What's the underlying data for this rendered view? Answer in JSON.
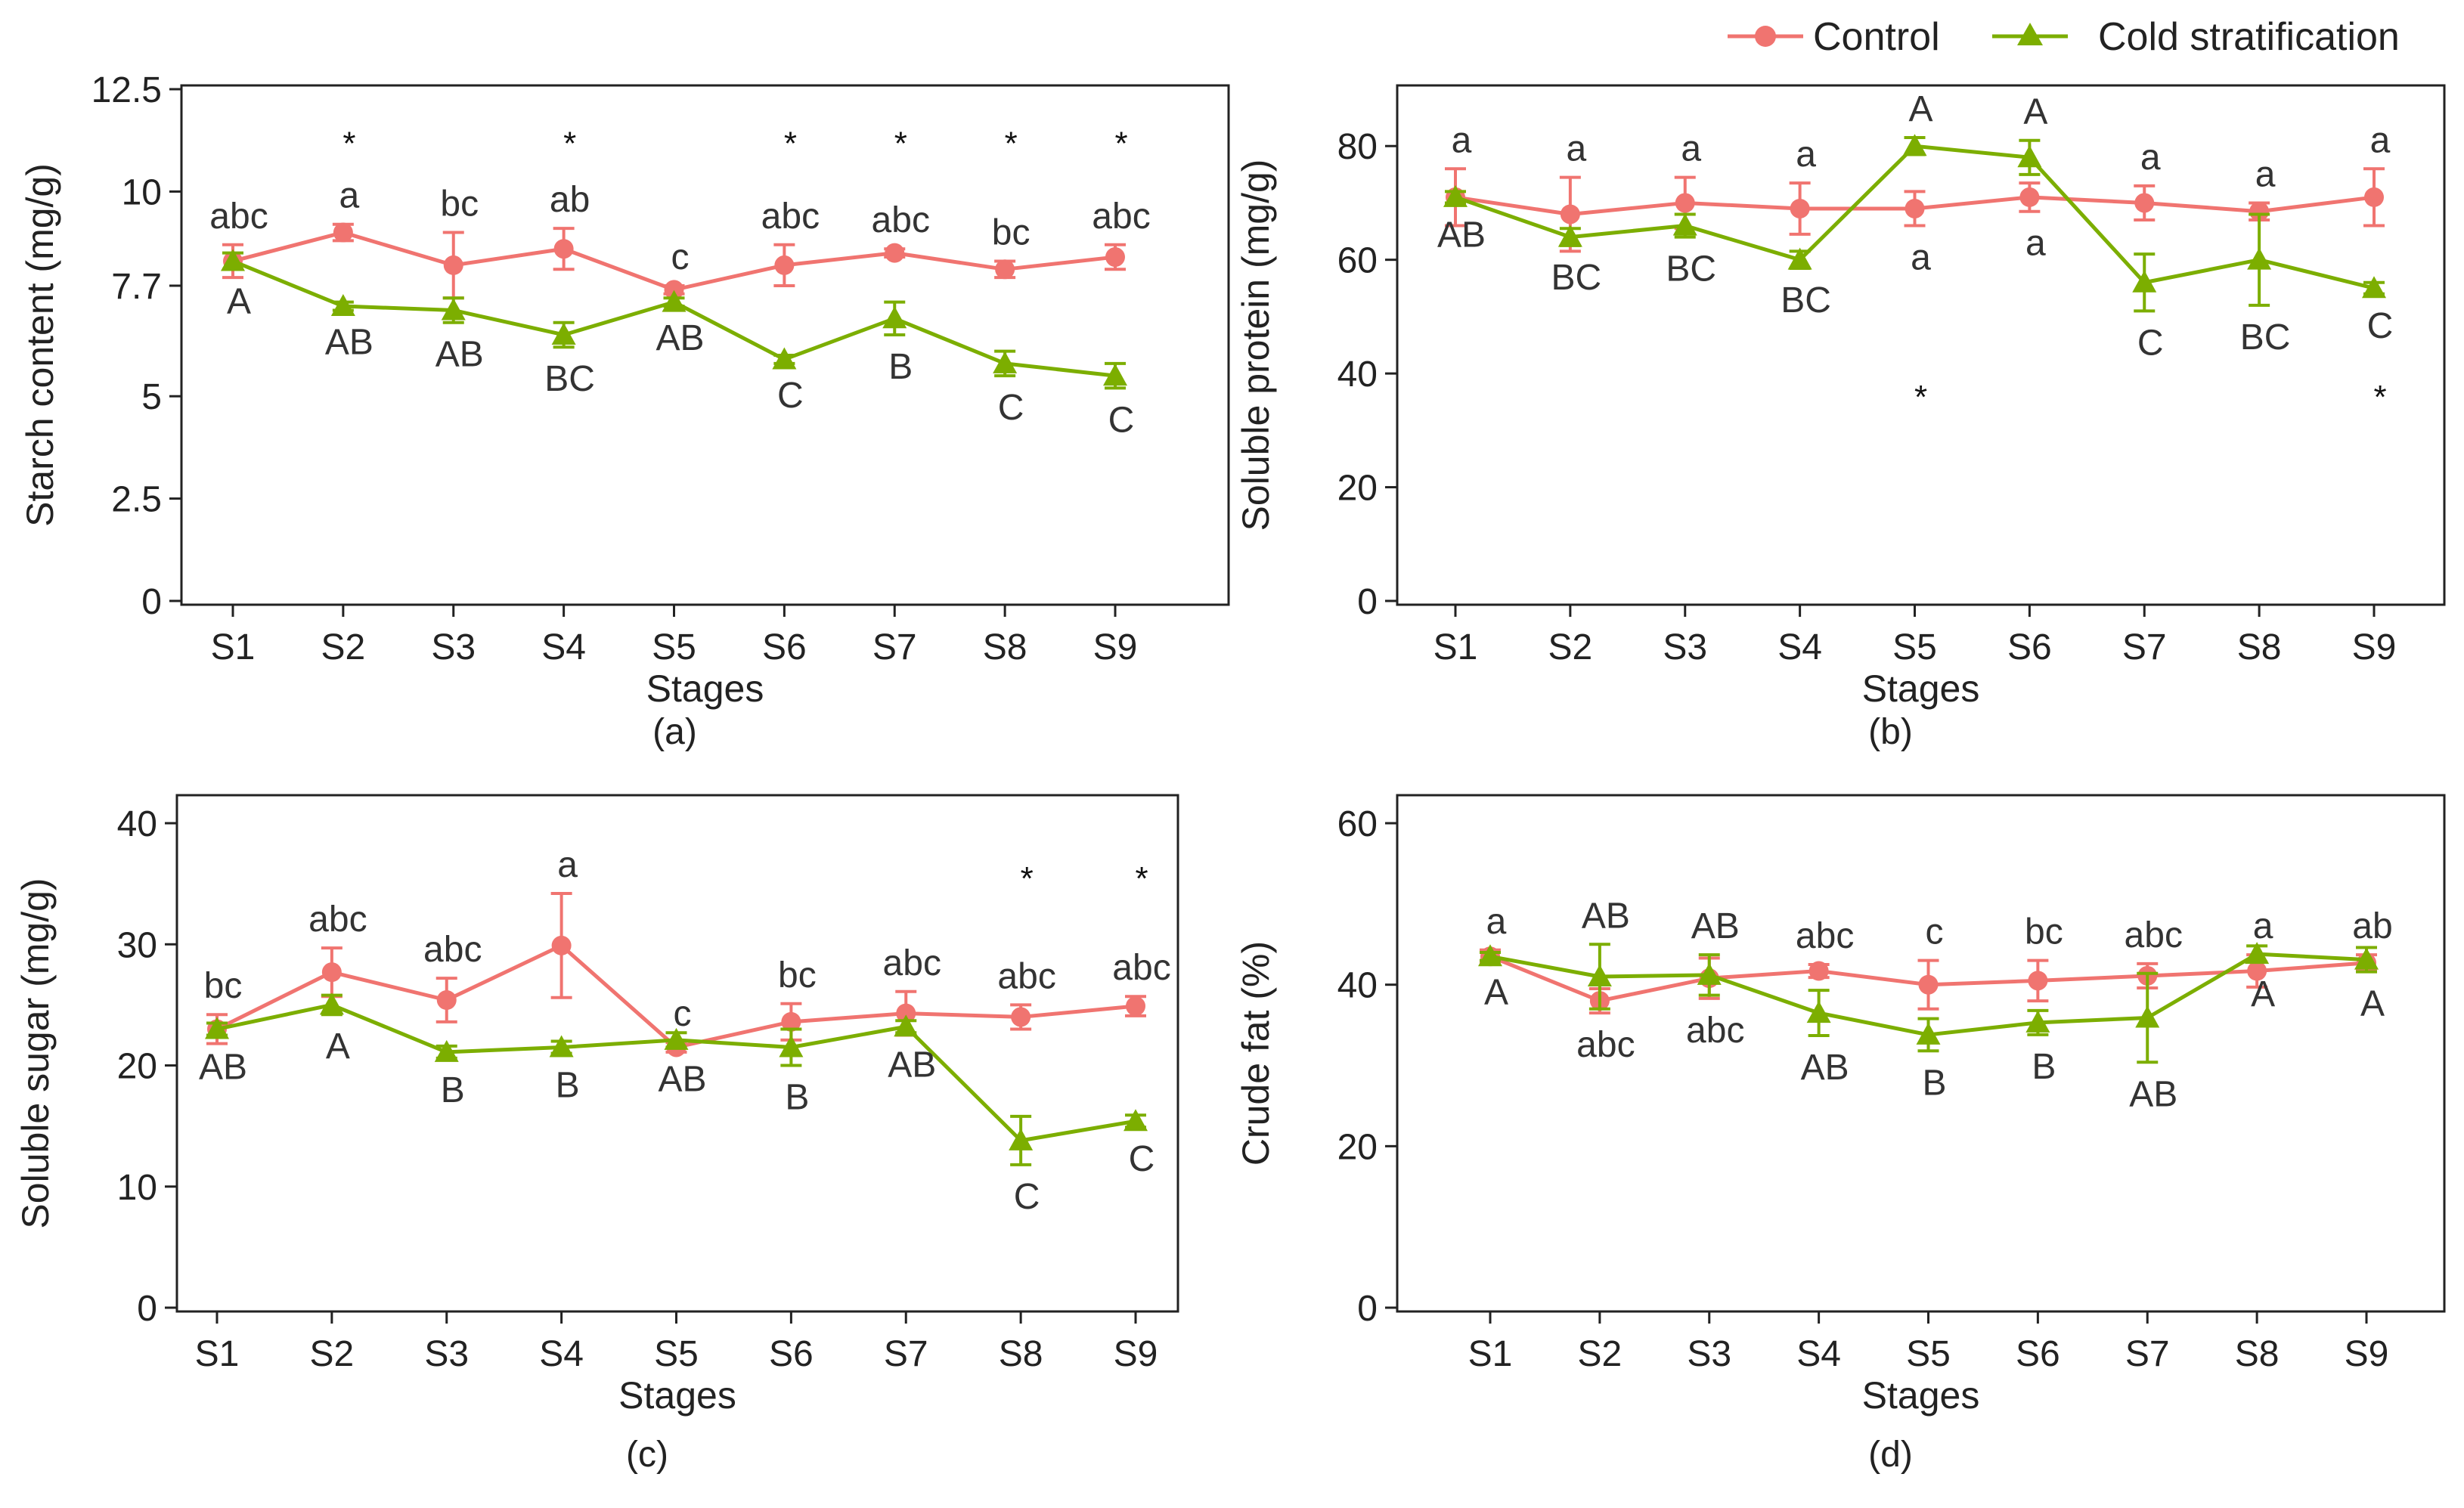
{
  "legend": {
    "control_label": "Control",
    "cold_label": "Cold stratification"
  },
  "colors": {
    "control": "#F07470",
    "cold": "#7CAE00",
    "axis": "#222222"
  },
  "chart_data": [
    {
      "id": "a",
      "type": "line",
      "panel_label": "(a)",
      "xlabel": "Stages",
      "ylabel": "Starch content (mg/g)",
      "ylim": [
        0,
        12.5
      ],
      "yticks": [
        0,
        2.5,
        5,
        7.7,
        10,
        12.5
      ],
      "ytick_labels": [
        "0",
        "2.5",
        "5",
        "7.7",
        "10",
        "12.5"
      ],
      "categories": [
        "S1",
        "S2",
        "S3",
        "S4",
        "S5",
        "S6",
        "S7",
        "S8",
        "S9"
      ],
      "stars": [
        "",
        "*",
        "",
        "*",
        "",
        "*",
        "*",
        "*",
        "*"
      ],
      "star_y": 11.2,
      "series": [
        {
          "name": "Control",
          "values": [
            8.3,
            9.0,
            8.2,
            8.6,
            7.6,
            8.2,
            8.5,
            8.1,
            8.4
          ],
          "errors": [
            0.4,
            0.2,
            0.8,
            0.5,
            0.1,
            0.5,
            0.1,
            0.2,
            0.3
          ],
          "letters": [
            "abc",
            "a",
            "bc",
            "ab",
            "c",
            "abc",
            "abc",
            "bc",
            "abc"
          ],
          "letter_pos": [
            "above",
            "above",
            "above",
            "above",
            "above",
            "above",
            "above",
            "above",
            "above"
          ]
        },
        {
          "name": "Cold stratification",
          "values": [
            8.3,
            7.2,
            7.1,
            6.5,
            7.3,
            5.9,
            6.9,
            5.8,
            5.5
          ],
          "errors": [
            0.2,
            0.1,
            0.3,
            0.3,
            0.1,
            0.1,
            0.4,
            0.3,
            0.3
          ],
          "letters": [
            "A",
            "AB",
            "AB",
            "BC",
            "AB",
            "C",
            "B",
            "C",
            "C"
          ],
          "letter_pos": [
            "below",
            "below",
            "below",
            "below",
            "below",
            "below",
            "below",
            "below",
            "below"
          ]
        }
      ]
    },
    {
      "id": "b",
      "type": "line",
      "panel_label": "(b)",
      "xlabel": "Stages",
      "ylabel": "Soluble protein (mg/g)",
      "ylim": [
        0,
        90
      ],
      "yticks": [
        0,
        20,
        40,
        60,
        80
      ],
      "ytick_labels": [
        "0",
        "20",
        "40",
        "60",
        "80"
      ],
      "categories": [
        "S1",
        "S2",
        "S3",
        "S4",
        "S5",
        "S6",
        "S7",
        "S8",
        "S9"
      ],
      "stars": [
        "",
        "",
        "",
        "",
        "*",
        "",
        "",
        "",
        "*"
      ],
      "star_y": 36,
      "series": [
        {
          "name": "Control",
          "values": [
            71,
            68,
            70,
            69,
            69,
            71,
            70,
            68.5,
            71
          ],
          "errors": [
            5,
            6.5,
            4.5,
            4.5,
            3,
            2.5,
            3,
            1.5,
            5
          ],
          "letters": [
            "a",
            "a",
            "a",
            "a",
            "a",
            "a",
            "a",
            "a",
            "a"
          ],
          "letter_pos": [
            "above",
            "above",
            "above",
            "above",
            "below",
            "below",
            "above",
            "above",
            "above"
          ]
        },
        {
          "name": "Cold stratification",
          "values": [
            71,
            64,
            66,
            60,
            80,
            78,
            56,
            60,
            55
          ],
          "errors": [
            1,
            1.5,
            2,
            1.5,
            1.5,
            3,
            5,
            8,
            1
          ],
          "letters": [
            "AB",
            "BC",
            "BC",
            "BC",
            "A",
            "A",
            "C",
            "BC",
            "C"
          ],
          "letter_pos": [
            "below",
            "below",
            "below",
            "below",
            "above",
            "above",
            "below",
            "below",
            "below"
          ]
        }
      ]
    },
    {
      "id": "c",
      "type": "line",
      "panel_label": "(c)",
      "xlabel": "Stages",
      "ylabel": "Soluble sugar (mg/g)",
      "ylim": [
        0,
        42
      ],
      "yticks": [
        0,
        10,
        20,
        30,
        40
      ],
      "ytick_labels": [
        "0",
        "10",
        "20",
        "30",
        "40"
      ],
      "categories": [
        "S1",
        "S2",
        "S3",
        "S4",
        "S5",
        "S6",
        "S7",
        "S8",
        "S9"
      ],
      "stars": [
        "",
        "",
        "",
        "",
        "",
        "",
        "",
        "*",
        "*"
      ],
      "star_y": 35.5,
      "series": [
        {
          "name": "Control",
          "values": [
            23.0,
            27.7,
            25.4,
            29.9,
            21.5,
            23.6,
            24.3,
            24.0,
            24.9
          ],
          "errors": [
            1.2,
            2.0,
            1.8,
            4.3,
            0.4,
            1.5,
            1.8,
            1.0,
            0.8
          ],
          "letters": [
            "bc",
            "abc",
            "abc",
            "a",
            "c",
            "bc",
            "abc",
            "abc",
            "abc"
          ],
          "letter_pos": [
            "above",
            "above",
            "above",
            "above",
            "above",
            "above",
            "above",
            "above",
            "above"
          ]
        },
        {
          "name": "Cold stratification",
          "values": [
            23.0,
            25.0,
            21.1,
            21.5,
            22.1,
            21.5,
            23.2,
            13.8,
            15.4
          ],
          "errors": [
            0.5,
            0.8,
            0.5,
            0.5,
            0.6,
            1.5,
            0.5,
            2.0,
            0.5
          ],
          "letters": [
            "AB",
            "A",
            "B",
            "B",
            "AB",
            "B",
            "AB",
            "C",
            "C"
          ],
          "letter_pos": [
            "below",
            "below",
            "below",
            "below",
            "below",
            "below",
            "below",
            "below",
            "below"
          ]
        }
      ]
    },
    {
      "id": "d",
      "type": "line",
      "panel_label": "(d)",
      "xlabel": "Stages",
      "ylabel": "Crude fat (%)",
      "ylim": [
        0,
        63
      ],
      "yticks": [
        0,
        20,
        40,
        60
      ],
      "ytick_labels": [
        "0",
        "20",
        "40",
        "60"
      ],
      "categories": [
        "S1",
        "S2",
        "S3",
        "S4",
        "S5",
        "S6",
        "S7",
        "S8",
        "S9"
      ],
      "stars": [],
      "star_y": 0,
      "series": [
        {
          "name": "Control",
          "values": [
            43.5,
            38.0,
            40.8,
            41.7,
            40.0,
            40.5,
            41.1,
            41.7,
            42.7
          ],
          "errors": [
            0.8,
            1.5,
            2.5,
            0.8,
            3.0,
            2.5,
            1.5,
            2.0,
            1.0
          ],
          "letters": [
            "a",
            "abc",
            "abc",
            "abc",
            "c",
            "bc",
            "abc",
            "a",
            "ab"
          ],
          "letter_pos": [
            "above",
            "below",
            "below",
            "above",
            "above",
            "above",
            "above",
            "above",
            "above"
          ]
        },
        {
          "name": "Cold stratification",
          "values": [
            43.5,
            41.0,
            41.2,
            36.5,
            33.8,
            35.3,
            35.9,
            43.8,
            43.1
          ],
          "errors": [
            0.5,
            4.0,
            2.5,
            2.8,
            2.0,
            1.5,
            5.5,
            1.0,
            1.5
          ],
          "letters": [
            "A",
            "AB",
            "AB",
            "AB",
            "B",
            "B",
            "AB",
            "A",
            "A"
          ],
          "letter_pos": [
            "below",
            "above",
            "above",
            "below",
            "below",
            "below",
            "below",
            "below",
            "below"
          ]
        }
      ]
    }
  ]
}
